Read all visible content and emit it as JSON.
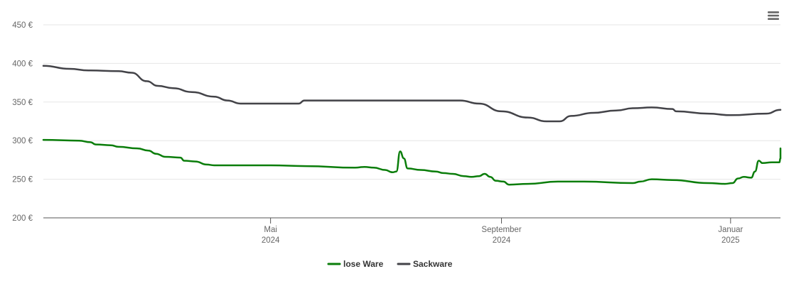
{
  "colors": {
    "lose_ware": "#0a7d0a",
    "sackware": "#434348",
    "grid": "#e6e6e6",
    "axis": "#555555",
    "menu": "#666666"
  },
  "menu_icon": "hamburger-icon",
  "chart_data": {
    "type": "line",
    "title": "",
    "xlabel": "",
    "ylabel": "",
    "ylim": [
      200,
      450
    ],
    "grid": true,
    "legend_position": "bottom-center",
    "y_ticks": [
      {
        "value": 200,
        "label": "200 €"
      },
      {
        "value": 250,
        "label": "250 €"
      },
      {
        "value": 300,
        "label": "300 €"
      },
      {
        "value": 350,
        "label": "350 €"
      },
      {
        "value": 400,
        "label": "400 €"
      },
      {
        "value": 450,
        "label": "450 €"
      }
    ],
    "xlim": [
      "2024-01-01",
      "2025-01-20"
    ],
    "x_ticks": [
      {
        "date": "2024-05-01",
        "month": "Mai",
        "year": "2024"
      },
      {
        "date": "2024-09-01",
        "month": "September",
        "year": "2024"
      },
      {
        "date": "2025-01-01",
        "month": "Januar",
        "year": "2025"
      }
    ],
    "series": [
      {
        "name": "lose Ware",
        "color": "#0a7d0a",
        "points": [
          [
            "2024-01-01",
            301
          ],
          [
            "2024-01-20",
            300
          ],
          [
            "2024-01-26",
            298
          ],
          [
            "2024-01-29",
            295
          ],
          [
            "2024-02-06",
            294
          ],
          [
            "2024-02-10",
            292
          ],
          [
            "2024-02-20",
            290
          ],
          [
            "2024-02-26",
            287
          ],
          [
            "2024-03-01",
            283
          ],
          [
            "2024-03-06",
            279
          ],
          [
            "2024-03-14",
            278
          ],
          [
            "2024-03-16",
            274
          ],
          [
            "2024-03-22",
            273
          ],
          [
            "2024-03-28",
            269
          ],
          [
            "2024-04-01",
            268
          ],
          [
            "2024-05-01",
            268
          ],
          [
            "2024-05-20",
            267
          ],
          [
            "2024-06-15",
            265
          ],
          [
            "2024-06-20",
            266
          ],
          [
            "2024-06-25",
            265
          ],
          [
            "2024-07-01",
            262
          ],
          [
            "2024-07-05",
            259
          ],
          [
            "2024-07-07",
            260
          ],
          [
            "2024-07-09",
            286
          ],
          [
            "2024-07-11",
            277
          ],
          [
            "2024-07-13",
            264
          ],
          [
            "2024-07-20",
            262
          ],
          [
            "2024-07-28",
            260
          ],
          [
            "2024-08-01",
            258
          ],
          [
            "2024-08-06",
            257
          ],
          [
            "2024-08-12",
            254
          ],
          [
            "2024-08-16",
            253
          ],
          [
            "2024-08-20",
            254
          ],
          [
            "2024-08-23",
            257
          ],
          [
            "2024-08-26",
            253
          ],
          [
            "2024-08-29",
            248
          ],
          [
            "2024-09-02",
            247
          ],
          [
            "2024-09-05",
            243
          ],
          [
            "2024-09-15",
            244
          ],
          [
            "2024-10-01",
            247
          ],
          [
            "2024-10-15",
            247
          ],
          [
            "2024-11-10",
            245
          ],
          [
            "2024-11-14",
            247
          ],
          [
            "2024-11-20",
            250
          ],
          [
            "2024-12-01",
            249
          ],
          [
            "2024-12-20",
            245
          ],
          [
            "2024-12-29",
            244
          ],
          [
            "2025-01-02",
            245
          ],
          [
            "2025-01-05",
            251
          ],
          [
            "2025-01-08",
            253
          ],
          [
            "2025-01-12",
            252
          ],
          [
            "2025-01-14",
            260
          ],
          [
            "2025-01-16",
            274
          ],
          [
            "2025-01-18",
            271
          ],
          [
            "2025-01-23",
            272
          ],
          [
            "2025-01-27",
            272
          ],
          [
            "2025-01-29",
            277
          ],
          [
            "2025-02-01",
            277
          ],
          [
            "2025-02-02",
            290
          ]
        ]
      },
      {
        "name": "Sackware",
        "color": "#434348",
        "points": [
          [
            "2024-01-01",
            397
          ],
          [
            "2024-01-15",
            393
          ],
          [
            "2024-01-25",
            391
          ],
          [
            "2024-02-10",
            390
          ],
          [
            "2024-02-17",
            388
          ],
          [
            "2024-02-25",
            377
          ],
          [
            "2024-03-02",
            371
          ],
          [
            "2024-03-10",
            368
          ],
          [
            "2024-03-20",
            363
          ],
          [
            "2024-04-01",
            357
          ],
          [
            "2024-04-08",
            352
          ],
          [
            "2024-04-15",
            348
          ],
          [
            "2024-05-01",
            348
          ],
          [
            "2024-05-16",
            348
          ],
          [
            "2024-05-19",
            352
          ],
          [
            "2024-06-01",
            352
          ],
          [
            "2024-07-01",
            352
          ],
          [
            "2024-08-01",
            352
          ],
          [
            "2024-08-10",
            352
          ],
          [
            "2024-08-20",
            348
          ],
          [
            "2024-09-01",
            338
          ],
          [
            "2024-09-15",
            330
          ],
          [
            "2024-09-25",
            325
          ],
          [
            "2024-10-02",
            325
          ],
          [
            "2024-10-08",
            332
          ],
          [
            "2024-10-20",
            336
          ],
          [
            "2024-11-01",
            339
          ],
          [
            "2024-11-10",
            342
          ],
          [
            "2024-11-20",
            343
          ],
          [
            "2024-12-01",
            341
          ],
          [
            "2024-12-03",
            338
          ],
          [
            "2024-12-20",
            335
          ],
          [
            "2025-01-01",
            333
          ],
          [
            "2025-01-20",
            335
          ],
          [
            "2025-02-02",
            340
          ]
        ]
      }
    ]
  }
}
